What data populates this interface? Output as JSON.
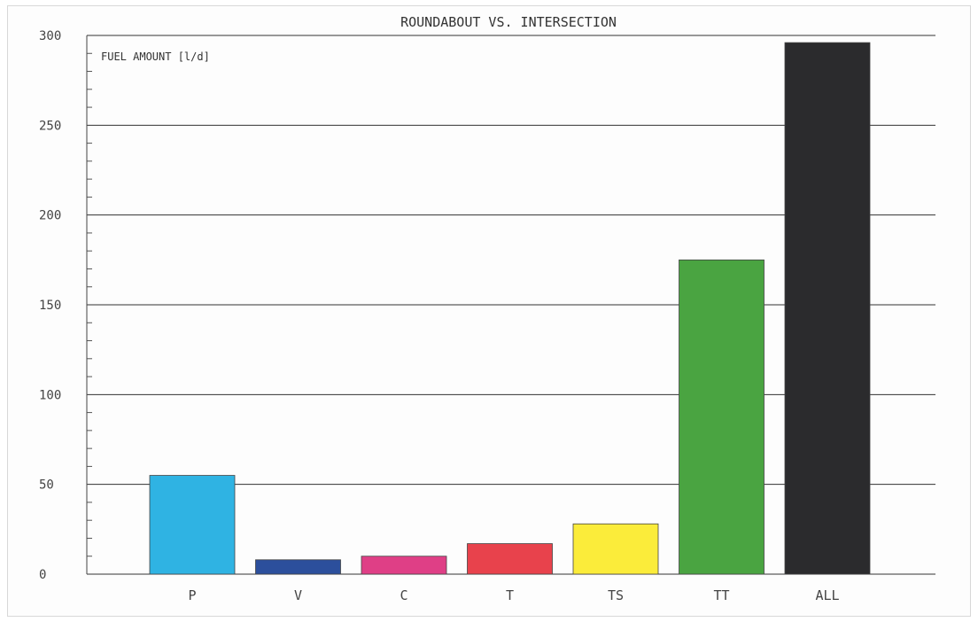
{
  "chart_data": {
    "type": "bar",
    "title": "ROUNDABOUT VS. INTERSECTION",
    "ylabel": "FUEL AMOUNT [l/d]",
    "xlabel": "",
    "ylim": [
      0,
      300
    ],
    "yticks": [
      "0",
      "50",
      "100",
      "150",
      "200",
      "250",
      "300"
    ],
    "grid": true,
    "categories": [
      "P",
      "V",
      "C",
      "T",
      "TS",
      "TT",
      "ALL"
    ],
    "values": [
      55,
      8,
      10,
      17,
      28,
      175,
      296
    ],
    "colors": [
      "#2fb3e3",
      "#2c4f9c",
      "#df3f86",
      "#e8424c",
      "#fbec3a",
      "#4aa441",
      "#2b2b2d"
    ]
  }
}
